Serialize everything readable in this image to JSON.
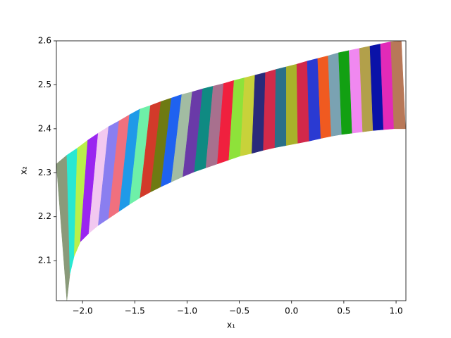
{
  "chart_data": {
    "type": "polygon",
    "xlabel": "x₁",
    "ylabel": "x₂",
    "xlim": [
      -2.25,
      1.094
    ],
    "ylim": [
      2.009,
      2.6
    ],
    "xticks": [
      {
        "value": -2.0,
        "label": "−2.0"
      },
      {
        "value": -1.5,
        "label": "−1.5"
      },
      {
        "value": -1.0,
        "label": "−1.0"
      },
      {
        "value": -0.5,
        "label": "−0.5"
      },
      {
        "value": 0.0,
        "label": "0.0"
      },
      {
        "value": 0.5,
        "label": "0.5"
      },
      {
        "value": 1.0,
        "label": "1.0"
      }
    ],
    "yticks": [
      2.1,
      2.2,
      2.3,
      2.4,
      2.5,
      2.6
    ],
    "upper": {
      "x": [
        -2.25,
        -2.15,
        -2.05,
        -1.95,
        -1.85,
        -1.75,
        -1.65,
        -1.55,
        -1.45,
        -1.35,
        -1.25,
        -1.15,
        -1.05,
        -0.95,
        -0.85,
        -0.75,
        -0.65,
        -0.55,
        -0.45,
        -0.35,
        -0.25,
        -0.15,
        -0.05,
        0.05,
        0.15,
        0.25,
        0.35,
        0.45,
        0.55,
        0.65,
        0.75,
        0.85,
        0.95,
        1.05
      ],
      "y": [
        2.32,
        2.34,
        2.356,
        2.374,
        2.39,
        2.405,
        2.418,
        2.432,
        2.445,
        2.453,
        2.462,
        2.47,
        2.478,
        2.484,
        2.491,
        2.497,
        2.503,
        2.51,
        2.516,
        2.522,
        2.528,
        2.535,
        2.541,
        2.547,
        2.554,
        2.56,
        2.566,
        2.573,
        2.578,
        2.583,
        2.588,
        2.593,
        2.598,
        2.6
      ]
    },
    "lower": {
      "x": [
        -2.15,
        -2.12,
        -2.08,
        -2.02,
        -1.94,
        -1.85,
        -1.75,
        -1.65,
        -1.55,
        -1.45,
        -1.35,
        -1.25,
        -1.15,
        -1.04,
        -0.93,
        -0.82,
        -0.71,
        -0.6,
        -0.49,
        -0.38,
        -0.27,
        -0.16,
        -0.05,
        0.06,
        0.17,
        0.28,
        0.38,
        0.48,
        0.58,
        0.68,
        0.78,
        0.88,
        0.98,
        1.09
      ],
      "y": [
        2.009,
        2.07,
        2.11,
        2.143,
        2.162,
        2.18,
        2.196,
        2.212,
        2.228,
        2.243,
        2.256,
        2.268,
        2.279,
        2.291,
        2.302,
        2.311,
        2.32,
        2.329,
        2.338,
        2.344,
        2.351,
        2.357,
        2.362,
        2.367,
        2.372,
        2.378,
        2.383,
        2.387,
        2.39,
        2.393,
        2.396,
        2.398,
        2.4,
        2.4
      ]
    },
    "colors": [
      "#8a9a7a",
      "#29e8d2",
      "#b9f04a",
      "#9a26f0",
      "#f2c8f0",
      "#8a7ef0",
      "#f0707e",
      "#1f9ae8",
      "#6ef0a8",
      "#d23a2a",
      "#6e7a12",
      "#1f62f0",
      "#a2bca2",
      "#6a3aa8",
      "#0f8a82",
      "#a8708e",
      "#f0203e",
      "#8ee23a",
      "#c8d23a",
      "#2a2a7a",
      "#d22a4a",
      "#2a7088",
      "#a8b22a",
      "#d2284a",
      "#2a3ad2",
      "#f05a20",
      "#7aa2b2",
      "#12a012",
      "#f088f0",
      "#b2a04a",
      "#0a12a8",
      "#e22ab8",
      "#b87858"
    ]
  }
}
